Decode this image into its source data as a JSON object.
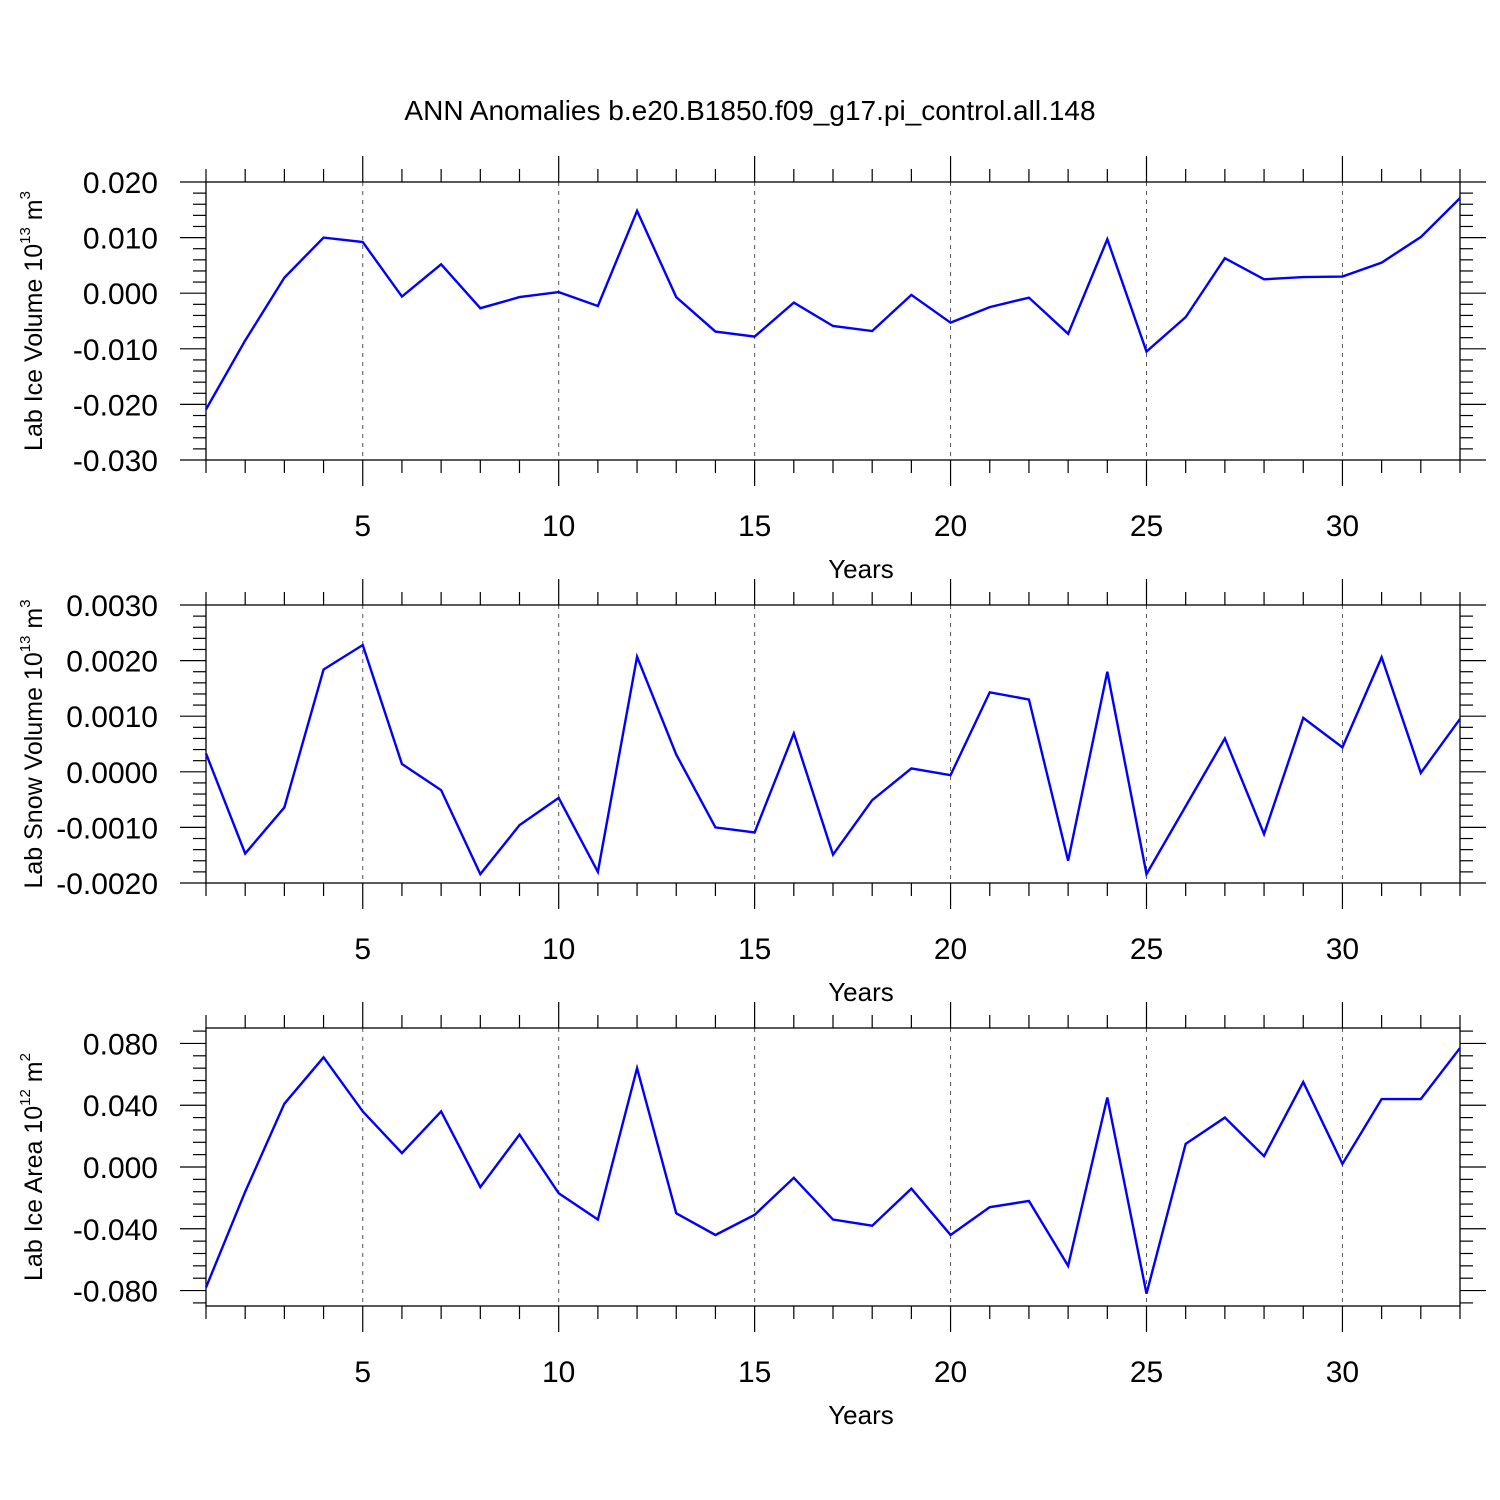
{
  "title": "ANN Anomalies b.e20.B1850.f09_g17.pi_control.all.148",
  "colors": {
    "series": "#0000ff",
    "axis": "#000000",
    "grid": "#555555"
  },
  "chart_data": [
    {
      "type": "line",
      "ylabel": {
        "main": "Lab Ice Volume 10",
        "sup_exp": "13",
        "unit": " m",
        "sup_unit": "3"
      },
      "xlabel": "Years",
      "xlim": [
        1,
        33
      ],
      "ylim": [
        -0.03,
        0.02
      ],
      "xticks": [
        5,
        10,
        15,
        20,
        25,
        30
      ],
      "yticks": [
        -0.03,
        -0.02,
        -0.01,
        0.0,
        0.01,
        0.02
      ],
      "ytick_labels": [
        "-0.030",
        "-0.020",
        "-0.010",
        "0.000",
        "0.010",
        "0.020"
      ],
      "grid_x": true,
      "x": [
        1,
        2,
        3,
        4,
        5,
        6,
        7,
        8,
        9,
        10,
        11,
        12,
        13,
        14,
        15,
        16,
        17,
        18,
        19,
        20,
        21,
        22,
        23,
        24,
        25,
        26,
        27,
        28,
        29,
        30,
        31,
        32,
        33
      ],
      "series": [
        {
          "values": [
            -0.0209,
            -0.0085,
            0.0028,
            0.01,
            0.0092,
            -0.0006,
            0.0052,
            -0.0027,
            -0.0007,
            0.0002,
            -0.0023,
            0.0148,
            -0.0007,
            -0.0069,
            -0.0078,
            -0.0017,
            -0.0059,
            -0.0068,
            -0.0003,
            -0.0053,
            -0.0025,
            -0.0008,
            -0.0073,
            0.0097,
            -0.0105,
            -0.0043,
            0.0063,
            0.0025,
            0.0029,
            0.003,
            0.0055,
            0.0101,
            0.0171
          ]
        }
      ]
    },
    {
      "type": "line",
      "ylabel": {
        "main": "Lab Snow Volume 10",
        "sup_exp": "13",
        "unit": " m",
        "sup_unit": "3"
      },
      "xlabel": "Years",
      "xlim": [
        1,
        33
      ],
      "ylim": [
        -0.002,
        0.003
      ],
      "xticks": [
        5,
        10,
        15,
        20,
        25,
        30
      ],
      "yticks": [
        -0.002,
        -0.001,
        0.0,
        0.001,
        0.002,
        0.003
      ],
      "ytick_labels": [
        "-0.0020",
        "-0.0010",
        "0.0000",
        "0.0010",
        "0.0020",
        "0.0030"
      ],
      "grid_x": true,
      "x": [
        1,
        2,
        3,
        4,
        5,
        6,
        7,
        8,
        9,
        10,
        11,
        12,
        13,
        14,
        15,
        16,
        17,
        18,
        19,
        20,
        21,
        22,
        23,
        24,
        25,
        26,
        27,
        28,
        29,
        30,
        31,
        32,
        33
      ],
      "series": [
        {
          "values": [
            0.00033,
            -0.00147,
            -0.00064,
            0.00184,
            0.00228,
            0.00014,
            -0.00033,
            -0.00184,
            -0.00096,
            -0.00047,
            -0.0018,
            0.00207,
            0.00031,
            -0.001,
            -0.00109,
            0.00069,
            -0.00149,
            -0.00051,
            6e-05,
            -6e-05,
            0.00143,
            0.0013,
            -0.0016,
            0.0018,
            -0.00184,
            -0.00062,
            0.0006,
            -0.00112,
            0.00097,
            0.00044,
            0.00206,
            -2e-05,
            0.00095
          ]
        }
      ]
    },
    {
      "type": "line",
      "ylabel": {
        "main": "Lab Ice Area 10",
        "sup_exp": "12",
        "unit": " m",
        "sup_unit": "2"
      },
      "xlabel": "Years",
      "xlim": [
        1,
        33
      ],
      "ylim": [
        -0.09,
        0.09
      ],
      "xticks": [
        5,
        10,
        15,
        20,
        25,
        30
      ],
      "yticks": [
        -0.08,
        -0.04,
        0.0,
        0.04,
        0.08
      ],
      "ytick_labels": [
        "-0.080",
        "-0.040",
        "0.000",
        "0.040",
        "0.080"
      ],
      "grid_x": true,
      "x": [
        1,
        2,
        3,
        4,
        5,
        6,
        7,
        8,
        9,
        10,
        11,
        12,
        13,
        14,
        15,
        16,
        17,
        18,
        19,
        20,
        21,
        22,
        23,
        24,
        25,
        26,
        27,
        28,
        29,
        30,
        31,
        32,
        33
      ],
      "series": [
        {
          "values": [
            -0.078,
            -0.016,
            0.041,
            0.071,
            0.036,
            0.009,
            0.036,
            -0.013,
            0.021,
            -0.017,
            -0.034,
            0.064,
            -0.03,
            -0.044,
            -0.031,
            -0.007,
            -0.034,
            -0.038,
            -0.014,
            -0.044,
            -0.026,
            -0.022,
            -0.064,
            0.045,
            -0.082,
            0.015,
            0.032,
            0.007,
            0.055,
            0.002,
            0.044,
            0.044,
            0.077
          ]
        }
      ]
    }
  ]
}
